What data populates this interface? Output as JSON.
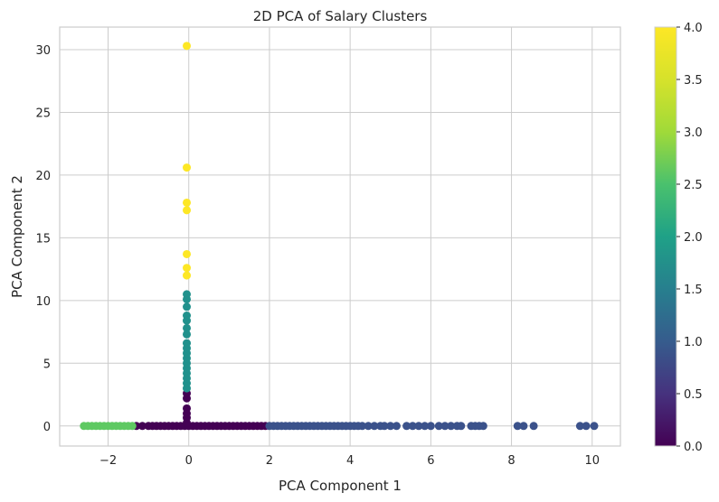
{
  "chart_data": {
    "type": "scatter",
    "title": "2D PCA of Salary Clusters",
    "xlabel": "PCA Component 1",
    "ylabel": "PCA Component 2",
    "xlim": [
      -3.2,
      10.7
    ],
    "ylim": [
      -1.6,
      31.8
    ],
    "xticks": [
      -2,
      0,
      2,
      4,
      6,
      8,
      10
    ],
    "xtick_labels": [
      "−2",
      "0",
      "2",
      "4",
      "6",
      "8",
      "10"
    ],
    "yticks": [
      0,
      5,
      10,
      15,
      20,
      25,
      30
    ],
    "ytick_labels": [
      "0",
      "5",
      "10",
      "15",
      "20",
      "25",
      "30"
    ],
    "grid": true,
    "colormap": "viridis",
    "colorbar": {
      "range": [
        0,
        4
      ],
      "ticks": [
        0,
        0.5,
        1,
        1.5,
        2,
        2.5,
        3,
        3.5,
        4
      ],
      "tick_labels": [
        "0.0",
        "0.5",
        "1.0",
        "1.5",
        "2.0",
        "2.5",
        "3.0",
        "3.5",
        "4.0"
      ]
    },
    "series": [
      {
        "cluster": 0,
        "color": "#440154",
        "points": [
          [
            -1.3,
            0
          ],
          [
            -1.15,
            0
          ],
          [
            -1.0,
            0
          ],
          [
            -0.9,
            0
          ],
          [
            -0.8,
            0
          ],
          [
            -0.7,
            0
          ],
          [
            -0.6,
            0
          ],
          [
            -0.5,
            0
          ],
          [
            -0.4,
            0
          ],
          [
            -0.3,
            0
          ],
          [
            -0.2,
            0
          ],
          [
            -0.1,
            0
          ],
          [
            0.0,
            0
          ],
          [
            0.1,
            0
          ],
          [
            0.2,
            0
          ],
          [
            0.3,
            0
          ],
          [
            0.4,
            0
          ],
          [
            0.5,
            0
          ],
          [
            0.6,
            0
          ],
          [
            0.7,
            0
          ],
          [
            0.8,
            0
          ],
          [
            0.9,
            0
          ],
          [
            1.0,
            0
          ],
          [
            1.1,
            0
          ],
          [
            1.2,
            0
          ],
          [
            1.3,
            0
          ],
          [
            1.4,
            0
          ],
          [
            1.5,
            0
          ],
          [
            1.6,
            0
          ],
          [
            1.7,
            0
          ],
          [
            1.8,
            0
          ],
          [
            1.9,
            0
          ],
          [
            -0.05,
            0.25
          ],
          [
            -0.05,
            0.65
          ],
          [
            -0.05,
            1.0
          ],
          [
            -0.05,
            1.4
          ],
          [
            -0.05,
            2.2
          ],
          [
            -0.05,
            2.6
          ]
        ]
      },
      {
        "cluster": 1,
        "color": "#3b528b",
        "points": [
          [
            2.0,
            0
          ],
          [
            2.1,
            0
          ],
          [
            2.2,
            0
          ],
          [
            2.3,
            0
          ],
          [
            2.4,
            0
          ],
          [
            2.5,
            0
          ],
          [
            2.6,
            0
          ],
          [
            2.7,
            0
          ],
          [
            2.8,
            0
          ],
          [
            2.9,
            0
          ],
          [
            3.0,
            0
          ],
          [
            3.1,
            0
          ],
          [
            3.2,
            0
          ],
          [
            3.3,
            0
          ],
          [
            3.4,
            0
          ],
          [
            3.5,
            0
          ],
          [
            3.6,
            0
          ],
          [
            3.7,
            0
          ],
          [
            3.8,
            0
          ],
          [
            3.9,
            0
          ],
          [
            4.0,
            0
          ],
          [
            4.1,
            0
          ],
          [
            4.2,
            0
          ],
          [
            4.3,
            0
          ],
          [
            4.45,
            0
          ],
          [
            4.6,
            0
          ],
          [
            4.75,
            0
          ],
          [
            4.85,
            0
          ],
          [
            5.0,
            0
          ],
          [
            5.15,
            0
          ],
          [
            5.4,
            0
          ],
          [
            5.55,
            0
          ],
          [
            5.7,
            0
          ],
          [
            5.85,
            0
          ],
          [
            6.0,
            0
          ],
          [
            6.2,
            0
          ],
          [
            6.35,
            0
          ],
          [
            6.5,
            0
          ],
          [
            6.65,
            0
          ],
          [
            6.75,
            0
          ],
          [
            7.0,
            0
          ],
          [
            7.1,
            0
          ],
          [
            7.2,
            0
          ],
          [
            7.3,
            0
          ],
          [
            8.15,
            0
          ],
          [
            8.3,
            0
          ],
          [
            8.55,
            0
          ],
          [
            9.7,
            0
          ],
          [
            9.85,
            0
          ],
          [
            10.05,
            0
          ]
        ]
      },
      {
        "cluster": 2,
        "color": "#21918c",
        "points": [
          [
            -0.05,
            3.0
          ],
          [
            -0.05,
            3.4
          ],
          [
            -0.05,
            3.8
          ],
          [
            -0.05,
            4.2
          ],
          [
            -0.05,
            4.6
          ],
          [
            -0.05,
            5.0
          ],
          [
            -0.05,
            5.4
          ],
          [
            -0.05,
            5.8
          ],
          [
            -0.05,
            6.2
          ],
          [
            -0.05,
            6.6
          ],
          [
            -0.05,
            7.3
          ],
          [
            -0.05,
            7.8
          ],
          [
            -0.05,
            8.4
          ],
          [
            -0.05,
            8.8
          ],
          [
            -0.05,
            9.5
          ],
          [
            -0.05,
            10.1
          ],
          [
            -0.05,
            10.5
          ]
        ]
      },
      {
        "cluster": 3,
        "color": "#5ec962",
        "points": [
          [
            -2.6,
            0
          ],
          [
            -2.5,
            0
          ],
          [
            -2.4,
            0
          ],
          [
            -2.3,
            0
          ],
          [
            -2.2,
            0
          ],
          [
            -2.1,
            0
          ],
          [
            -2.0,
            0
          ],
          [
            -1.9,
            0
          ],
          [
            -1.8,
            0
          ],
          [
            -1.7,
            0
          ],
          [
            -1.6,
            0
          ],
          [
            -1.5,
            0
          ],
          [
            -1.4,
            0
          ]
        ]
      },
      {
        "cluster": 4,
        "color": "#fde725",
        "points": [
          [
            -0.05,
            30.3
          ],
          [
            -0.05,
            20.6
          ],
          [
            -0.05,
            17.8
          ],
          [
            -0.05,
            17.2
          ],
          [
            -0.05,
            13.7
          ],
          [
            -0.05,
            12.6
          ],
          [
            -0.05,
            12.0
          ]
        ]
      }
    ]
  }
}
